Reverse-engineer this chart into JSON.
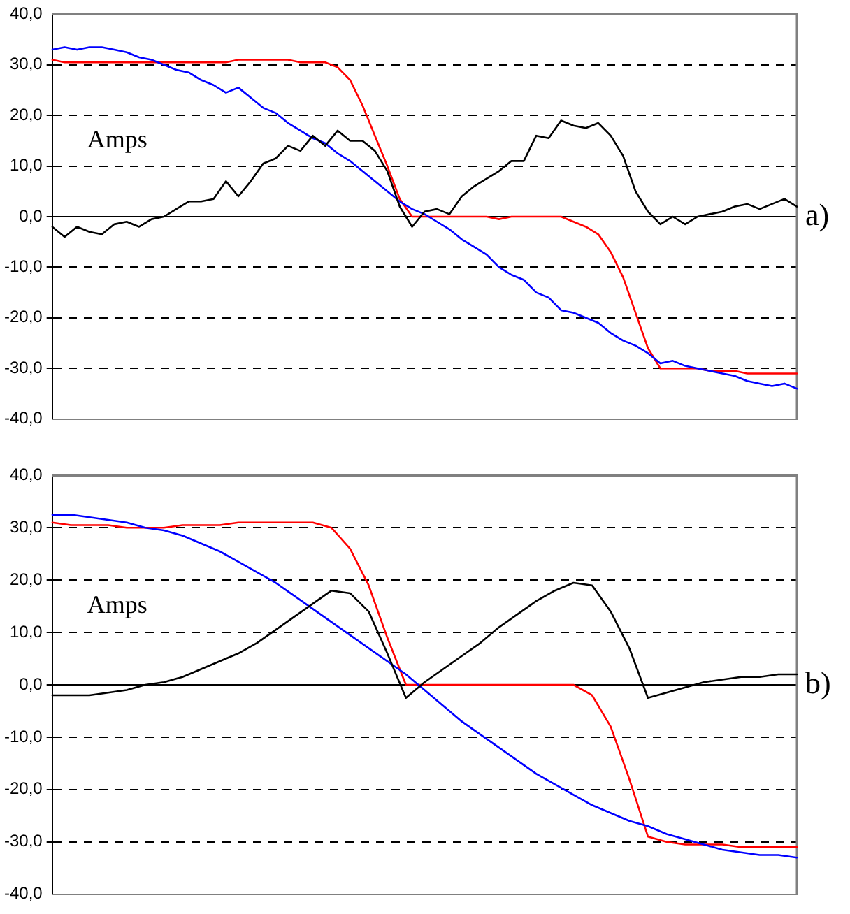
{
  "chart_data": [
    {
      "type": "line",
      "annotations": [
        "Amps",
        "a)"
      ],
      "ylim": [
        -40,
        40
      ],
      "yticks": [
        {
          "value": -40,
          "label": "-40,0"
        },
        {
          "value": -30,
          "label": "-30,0"
        },
        {
          "value": -20,
          "label": "-20,0"
        },
        {
          "value": -10,
          "label": "-10,0"
        },
        {
          "value": 0,
          "label": "0,0"
        },
        {
          "value": 10,
          "label": "10,0"
        },
        {
          "value": 20,
          "label": "20,0"
        },
        {
          "value": 30,
          "label": "30,0"
        },
        {
          "value": 40,
          "label": "40,0"
        }
      ],
      "grid": "y",
      "tick_labels": "y",
      "marker": "none",
      "line_style": "solid",
      "categories": [
        null,
        null,
        null,
        null,
        null,
        null,
        null,
        null,
        null,
        null,
        null,
        null,
        null,
        null,
        null,
        null,
        null,
        null,
        null,
        null,
        null,
        null,
        null,
        null,
        null,
        null,
        null,
        null,
        null,
        null,
        null,
        null,
        null,
        null,
        null,
        null,
        null,
        null,
        null,
        null,
        null,
        null,
        null,
        null,
        null,
        null,
        null,
        null,
        null,
        null,
        null,
        null,
        null,
        null,
        null,
        null,
        null,
        null,
        null,
        null,
        null
      ],
      "series": [
        {
          "color": "#000000",
          "values": [
            -2,
            -4,
            -2,
            -3,
            -3.5,
            -1.5,
            -1,
            -2,
            -0.5,
            0,
            1.5,
            3,
            3,
            3.5,
            7,
            4,
            7,
            10.5,
            11.5,
            14,
            13,
            16,
            14,
            17,
            15,
            15,
            13,
            9,
            2,
            -2,
            1,
            1.5,
            0.5,
            4,
            6,
            7.5,
            9,
            11,
            11,
            16,
            15.5,
            19,
            18,
            17.5,
            18.5,
            16,
            12,
            5,
            1,
            -1.5,
            0,
            -1.5,
            0,
            0.5,
            1,
            2,
            2.5,
            1.5,
            2.5,
            3.5,
            2
          ]
        },
        {
          "color": "#0000ff",
          "values": [
            33,
            33.5,
            33,
            33.5,
            33.5,
            33,
            32.5,
            31.5,
            31,
            30,
            29,
            28.5,
            27,
            26,
            24.5,
            25.5,
            23.5,
            21.5,
            20.5,
            18.5,
            17,
            15.5,
            14.5,
            12.5,
            11,
            9,
            7,
            5,
            3,
            1.5,
            0.5,
            -1,
            -2.5,
            -4.5,
            -6,
            -7.5,
            -10,
            -11.5,
            -12.5,
            -15,
            -16,
            -18.5,
            -19,
            -20,
            -21,
            -23,
            -24.5,
            -25.5,
            -27,
            -29,
            -28.5,
            -29.5,
            -30,
            -30.5,
            -31,
            -31.5,
            -32.5,
            -33,
            -33.5,
            -33,
            -34
          ]
        },
        {
          "color": "#ff0000",
          "values": [
            31,
            30.5,
            30.5,
            30.5,
            30.5,
            30.5,
            30.5,
            30.5,
            30.5,
            30.5,
            30.5,
            30.5,
            30.5,
            30.5,
            30.5,
            31,
            31,
            31,
            31,
            31,
            30.5,
            30.5,
            30.5,
            29.5,
            27,
            22,
            16,
            10,
            3.5,
            0,
            0,
            0,
            0,
            0,
            0,
            0,
            -0.5,
            0,
            0,
            0,
            0,
            0,
            -1,
            -2,
            -3.5,
            -7,
            -12,
            -19,
            -26,
            -30,
            -30,
            -30,
            -30,
            -30.5,
            -30.5,
            -30.5,
            -31,
            -31,
            -31,
            -31,
            -31
          ]
        }
      ]
    },
    {
      "type": "line",
      "annotations": [
        "Amps",
        "b)"
      ],
      "ylim": [
        -40,
        40
      ],
      "yticks": [
        {
          "value": -40,
          "label": "-40,0"
        },
        {
          "value": -30,
          "label": "-30,0"
        },
        {
          "value": -20,
          "label": "-20,0"
        },
        {
          "value": -10,
          "label": "-10,0"
        },
        {
          "value": 0,
          "label": "0,0"
        },
        {
          "value": 10,
          "label": "10,0"
        },
        {
          "value": 20,
          "label": "20,0"
        },
        {
          "value": 30,
          "label": "30,0"
        },
        {
          "value": 40,
          "label": "40,0"
        }
      ],
      "grid": "y",
      "tick_labels": "y",
      "marker": "none",
      "line_style": "solid",
      "categories": [
        null,
        null,
        null,
        null,
        null,
        null,
        null,
        null,
        null,
        null,
        null,
        null,
        null,
        null,
        null,
        null,
        null,
        null,
        null,
        null,
        null,
        null,
        null,
        null,
        null,
        null,
        null,
        null,
        null,
        null,
        null,
        null,
        null,
        null,
        null,
        null,
        null,
        null,
        null,
        null,
        null
      ],
      "series": [
        {
          "color": "#000000",
          "values": [
            -2,
            -2,
            -2,
            -1.5,
            -1,
            0,
            0.5,
            1.5,
            3,
            4.5,
            6,
            8,
            10.5,
            13,
            15.5,
            18,
            17.5,
            14,
            6,
            -2.5,
            0.5,
            3,
            5.5,
            8,
            11,
            13.5,
            16,
            18,
            19.5,
            19,
            14,
            7,
            -2.5,
            -1.5,
            -0.5,
            0.5,
            1,
            1.5,
            1.5,
            2,
            2
          ]
        },
        {
          "color": "#0000ff",
          "values": [
            32.5,
            32.5,
            32,
            31.5,
            31,
            30,
            29.5,
            28.5,
            27,
            25.5,
            23.5,
            21.5,
            19.5,
            17,
            14.5,
            12,
            9.5,
            7,
            4.5,
            2,
            -1,
            -4,
            -7,
            -9.5,
            -12,
            -14.5,
            -17,
            -19,
            -21,
            -23,
            -24.5,
            -26,
            -27,
            -28.5,
            -29.5,
            -30.5,
            -31.5,
            -32,
            -32.5,
            -32.5,
            -33
          ]
        },
        {
          "color": "#ff0000",
          "values": [
            31,
            30.5,
            30.5,
            30.5,
            30,
            30,
            30,
            30.5,
            30.5,
            30.5,
            31,
            31,
            31,
            31,
            31,
            30,
            26,
            19,
            9,
            0,
            0,
            0,
            0,
            0,
            0,
            0,
            0,
            0,
            0,
            -2,
            -8,
            -18,
            -29,
            -30,
            -30.5,
            -30.5,
            -30.5,
            -31,
            -31,
            -31,
            -31
          ]
        }
      ]
    }
  ]
}
